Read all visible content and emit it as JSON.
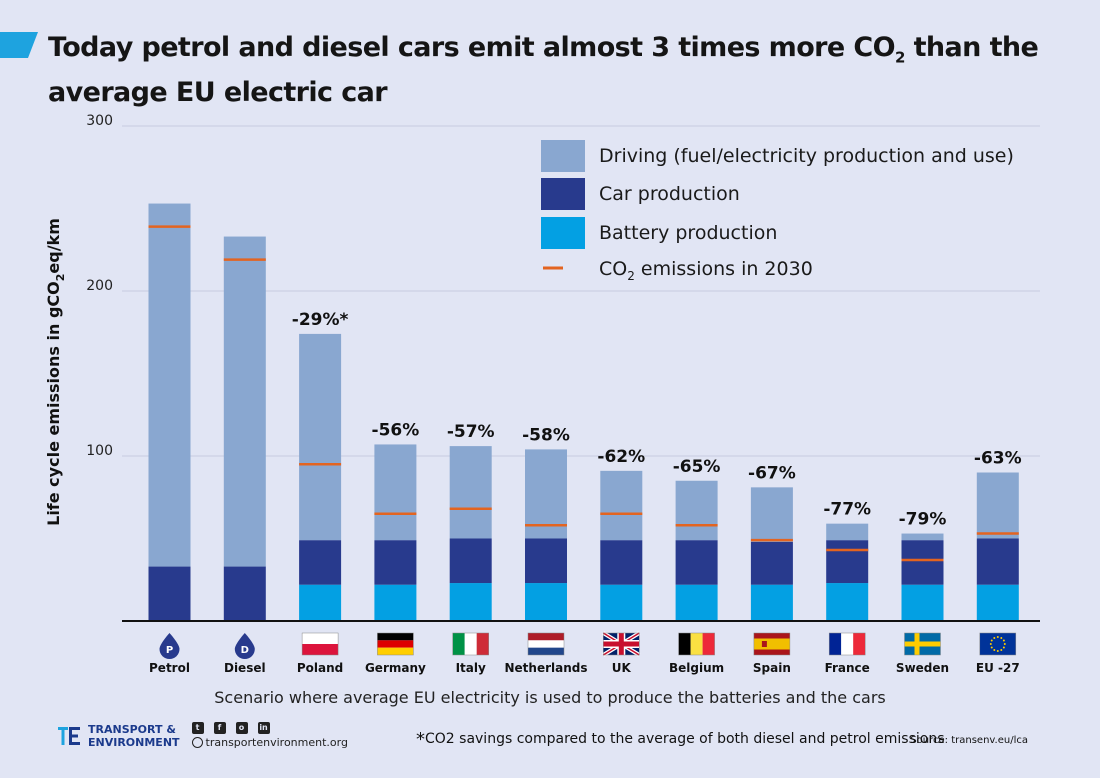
{
  "colors": {
    "driving": "#89a7d0",
    "car_production": "#283a8d",
    "battery_production": "#03a0e3",
    "co2_2030": "#e36420",
    "accent": "#1ea3df"
  },
  "header": {
    "title_part1": "Today petrol and diesel cars emit almost 3 times more CO",
    "title_sub": "2",
    "title_part2": " than the average EU electric car"
  },
  "chart_data": {
    "type": "bar",
    "stacked": true,
    "ylabel_main": "Life  cycle emissions in gCO",
    "ylabel_sub": "2",
    "ylabel_end": "eq/km",
    "ylim": [
      0,
      300
    ],
    "yticks": [
      100,
      200,
      300
    ],
    "grid": true,
    "legend_position": "top-right",
    "legend": [
      {
        "label": "Driving (fuel/electricity production and use)",
        "color": "#89a7d0"
      },
      {
        "label": "Car production",
        "color": "#283a8d"
      },
      {
        "label": "Battery production",
        "color": "#03a0e3"
      },
      {
        "label_main": "CO",
        "label_sub": "2",
        "label_end": " emissions in 2030",
        "color": "#e36420",
        "marker": "line"
      }
    ],
    "categories": [
      "Petrol",
      "Diesel",
      "Poland",
      "Germany",
      "Italy",
      "Netherlands",
      "UK",
      "Belgium",
      "Spain",
      "France",
      "Sweden",
      "EU -27"
    ],
    "badges": [
      "petrol-pump",
      "diesel-pump",
      "flag-poland",
      "flag-germany",
      "flag-italy",
      "flag-netherlands",
      "flag-uk",
      "flag-belgium",
      "flag-spain",
      "flag-france",
      "flag-sweden",
      "flag-eu"
    ],
    "series": [
      {
        "name": "Battery production",
        "values": [
          0,
          0,
          22,
          22,
          23,
          23,
          22,
          22,
          22,
          23,
          22,
          22
        ]
      },
      {
        "name": "Car production",
        "values": [
          33,
          33,
          27,
          27,
          27,
          27,
          27,
          27,
          26,
          26,
          27,
          28
        ]
      },
      {
        "name": "Driving (fuel/electricity production and use)",
        "values": [
          220,
          200,
          125,
          58,
          56,
          54,
          42,
          36,
          33,
          10,
          4,
          40
        ]
      }
    ],
    "co2_2030": [
      239,
      219,
      95,
      65,
      68,
      58,
      65,
      58,
      49,
      43,
      37,
      53
    ],
    "reductions": [
      "",
      "",
      "-29%*",
      "-56%",
      "-57%",
      "-58%",
      "-62%",
      "-65%",
      "-67%",
      "-77%",
      "-79%",
      "-63%"
    ]
  },
  "subtitle": "Scenario where  average EU electricity is used to produce the batteries and the cars",
  "footer": {
    "brand_line1": "TRANSPORT &",
    "brand_line2": "ENVIRONMENT",
    "website": "transportenvironment.org",
    "footnote_marker": "*",
    "footnote": "CO2 savings compared to the average of both diesel and petrol emissions",
    "source": "Source: transenv.eu/lca",
    "social_icons": [
      "twitter-icon",
      "facebook-icon",
      "instagram-icon",
      "linkedin-icon"
    ]
  }
}
